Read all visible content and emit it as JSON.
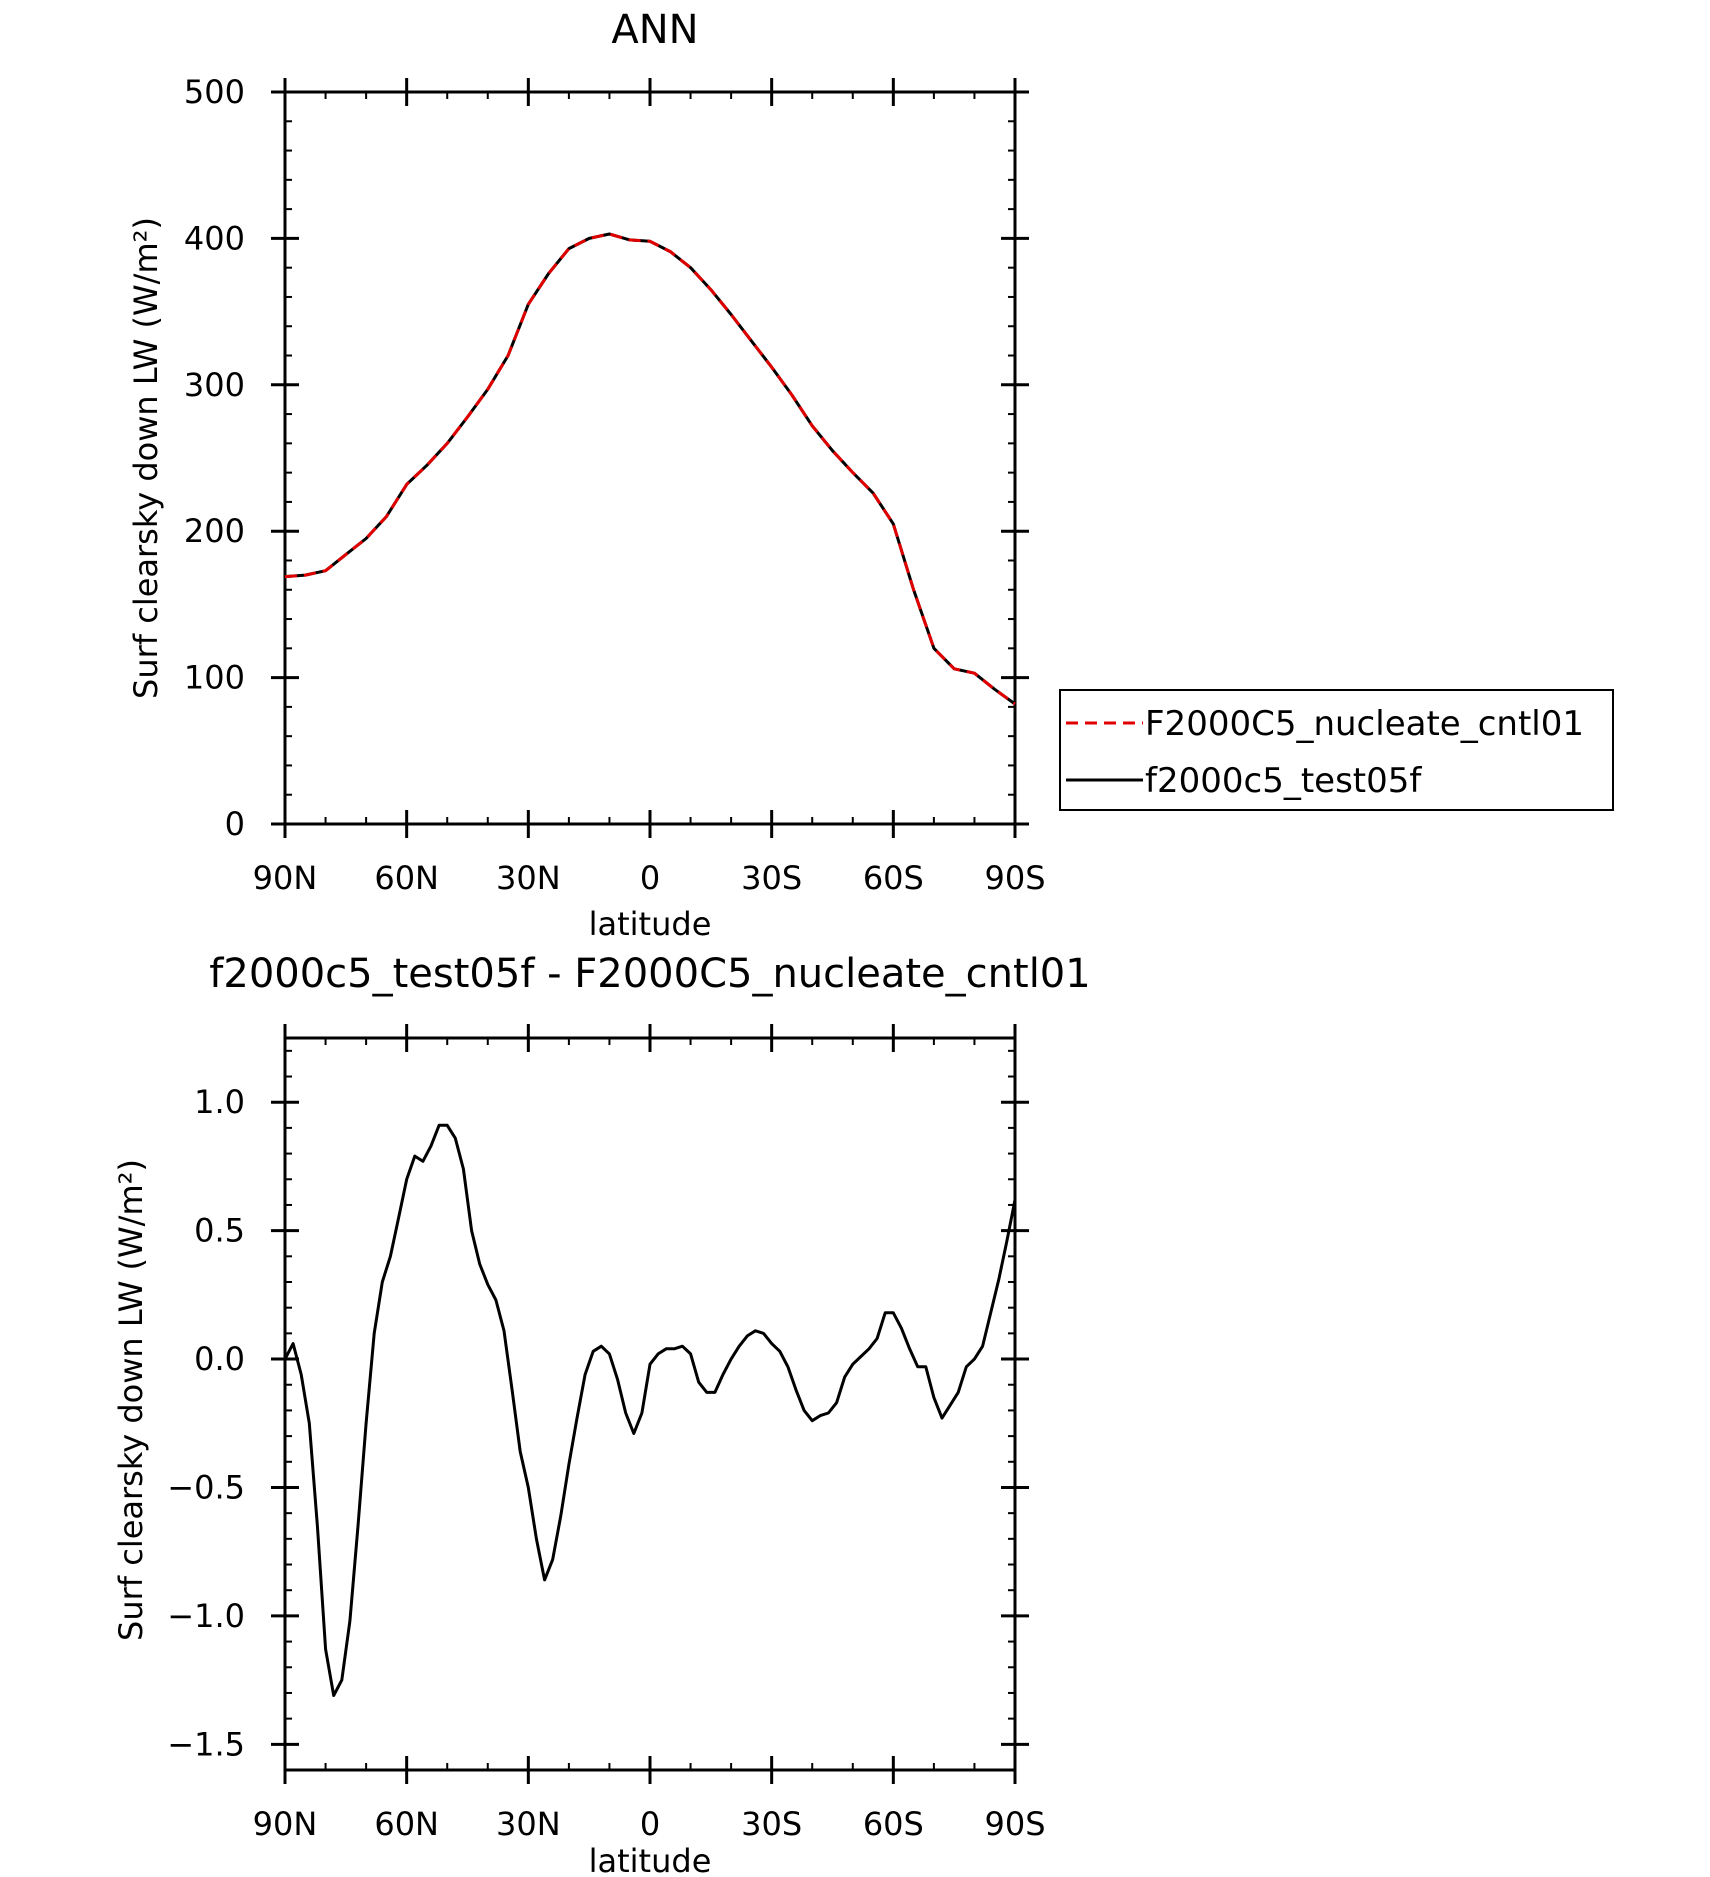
{
  "chart_data": [
    {
      "type": "line",
      "title": "ANN",
      "xlabel": "latitude",
      "ylabel": "Surf clearsky down LW (W/m²)",
      "xlim": [
        90,
        -90
      ],
      "ylim": [
        0,
        500
      ],
      "x_ticks": [
        90,
        60,
        30,
        0,
        -30,
        -60,
        -90
      ],
      "x_tick_labels": [
        "90N",
        "60N",
        "30N",
        "0",
        "30S",
        "60S",
        "90S"
      ],
      "y_ticks": [
        0,
        100,
        200,
        300,
        400,
        500
      ],
      "y_tick_labels": [
        "0",
        "100",
        "200",
        "300",
        "400",
        "500"
      ],
      "grid": false,
      "legend_position": "right",
      "x": [
        90,
        85,
        80,
        75,
        70,
        65,
        60,
        55,
        50,
        45,
        40,
        35,
        30,
        25,
        20,
        15,
        10,
        5,
        0,
        -5,
        -10,
        -15,
        -20,
        -25,
        -30,
        -35,
        -40,
        -45,
        -50,
        -55,
        -60,
        -65,
        -70,
        -75,
        -80,
        -85,
        -90
      ],
      "series": [
        {
          "name": "F2000C5_nucleate_cntl01",
          "color": "#e00000",
          "dash": "dashed",
          "values": [
            169,
            170,
            173,
            184,
            195,
            210,
            232,
            245,
            260,
            278,
            297,
            320,
            355,
            376,
            393,
            400,
            403,
            399,
            398,
            391,
            380,
            365,
            348,
            330,
            312,
            293,
            272,
            255,
            240,
            226,
            205,
            160,
            120,
            106,
            103,
            92,
            82
          ]
        },
        {
          "name": "f2000c5_test05f",
          "color": "#000000",
          "dash": "solid",
          "values": [
            169,
            170,
            173,
            184,
            195,
            210,
            232,
            245,
            260,
            278,
            297,
            320,
            355,
            376,
            393,
            400,
            403,
            399,
            398,
            391,
            380,
            365,
            348,
            330,
            312,
            293,
            272,
            255,
            240,
            226,
            205,
            160,
            120,
            106,
            103,
            92,
            82
          ]
        }
      ]
    },
    {
      "type": "line",
      "title": "f2000c5_test05f - F2000C5_nucleate_cntl01",
      "xlabel": "latitude",
      "ylabel": "Surf clearsky down LW (W/m²)",
      "xlim": [
        90,
        -90
      ],
      "ylim": [
        -1.6,
        1.25
      ],
      "x_ticks": [
        90,
        60,
        30,
        0,
        -30,
        -60,
        -90
      ],
      "x_tick_labels": [
        "90N",
        "60N",
        "30N",
        "0",
        "30S",
        "60S",
        "90S"
      ],
      "y_ticks": [
        -1.5,
        -1.0,
        -0.5,
        0.0,
        0.5,
        1.0
      ],
      "y_tick_labels": [
        "−1.5",
        "−1.0",
        "−0.5",
        "0.0",
        "0.5",
        "1.0"
      ],
      "grid": false,
      "series": [
        {
          "color": "#000000",
          "x": [
            90,
            88,
            86,
            84,
            82,
            80,
            78,
            76,
            74,
            72,
            70,
            68,
            66,
            64,
            62,
            60,
            58,
            56,
            54,
            52,
            50,
            48,
            46,
            44,
            42,
            40,
            38,
            36,
            34,
            32,
            30,
            28,
            26,
            24,
            22,
            20,
            18,
            16,
            14,
            12,
            10,
            8,
            6,
            4,
            2,
            0,
            -2,
            -4,
            -6,
            -8,
            -10,
            -12,
            -14,
            -16,
            -18,
            -20,
            -22,
            -24,
            -26,
            -28,
            -30,
            -32,
            -34,
            -36,
            -38,
            -40,
            -42,
            -44,
            -46,
            -48,
            -50,
            -52,
            -54,
            -56,
            -58,
            -60,
            -62,
            -64,
            -66,
            -68,
            -70,
            -72,
            -74,
            -76,
            -78,
            -80,
            -82,
            -84,
            -86,
            -88,
            -90
          ],
          "values": [
            0.0,
            0.06,
            -0.06,
            -0.25,
            -0.65,
            -1.13,
            -1.31,
            -1.25,
            -1.02,
            -0.65,
            -0.25,
            0.1,
            0.3,
            0.4,
            0.55,
            0.7,
            0.79,
            0.77,
            0.83,
            0.91,
            0.91,
            0.86,
            0.74,
            0.5,
            0.37,
            0.29,
            0.23,
            0.11,
            -0.12,
            -0.36,
            -0.5,
            -0.7,
            -0.86,
            -0.78,
            -0.61,
            -0.41,
            -0.23,
            -0.06,
            0.03,
            0.05,
            0.02,
            -0.08,
            -0.21,
            -0.29,
            -0.21,
            -0.02,
            0.02,
            0.04,
            0.04,
            0.05,
            0.02,
            -0.09,
            -0.13,
            -0.13,
            -0.06,
            0.0,
            0.05,
            0.09,
            0.11,
            0.1,
            0.06,
            0.03,
            -0.03,
            -0.12,
            -0.2,
            -0.24,
            -0.22,
            -0.21,
            -0.17,
            -0.07,
            -0.02,
            0.01,
            0.04,
            0.08,
            0.18,
            0.18,
            0.12,
            0.04,
            -0.03,
            -0.03,
            -0.15,
            -0.23,
            -0.18,
            -0.13,
            -0.03,
            0.0,
            0.05,
            0.18,
            0.31,
            0.46,
            0.62
          ]
        }
      ]
    }
  ]
}
